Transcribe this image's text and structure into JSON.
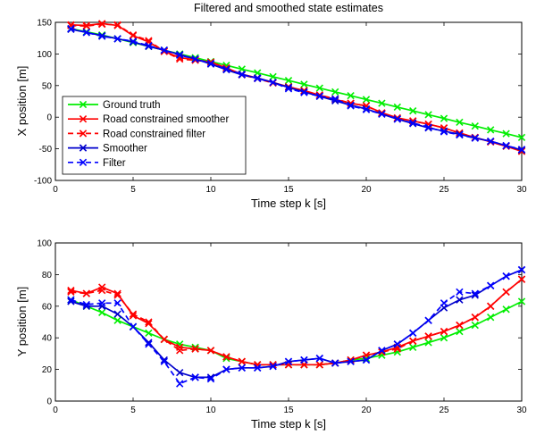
{
  "chart_data": [
    {
      "type": "line",
      "title": "Filtered and smoothed state estimates",
      "xlabel": "Time step k [s]",
      "ylabel": "X position [m]",
      "xlim": [
        0,
        30
      ],
      "ylim": [
        -100,
        150
      ],
      "xticks": [
        0,
        5,
        10,
        15,
        20,
        25,
        30
      ],
      "yticks": [
        -100,
        -50,
        0,
        50,
        100,
        150
      ],
      "grid": false,
      "legend": "lower-left",
      "x": [
        1,
        2,
        3,
        4,
        5,
        6,
        7,
        8,
        9,
        10,
        11,
        12,
        13,
        14,
        15,
        16,
        17,
        18,
        19,
        20,
        21,
        22,
        23,
        24,
        25,
        26,
        27,
        28,
        29,
        30
      ],
      "series": [
        {
          "name": "Ground truth",
          "color": "#00ee00",
          "style": "solid",
          "values": [
            140,
            135,
            130,
            124,
            118,
            112,
            106,
            100,
            94,
            88,
            82,
            76,
            70,
            64,
            58,
            52,
            46,
            40,
            34,
            28,
            22,
            16,
            10,
            4,
            -2,
            -8,
            -14,
            -20,
            -26,
            -32
          ]
        },
        {
          "name": "Road constrained smoother",
          "color": "#ff0000",
          "style": "solid",
          "values": [
            146,
            145,
            148,
            145,
            129,
            119,
            104,
            94,
            91,
            87,
            78,
            68,
            62,
            55,
            48,
            42,
            35,
            28,
            22,
            18,
            7,
            -1,
            -6,
            -11,
            -17,
            -25,
            -32,
            -39,
            -46,
            -54
          ]
        },
        {
          "name": "Road constrained filter",
          "color": "#ff0000",
          "style": "dashed",
          "values": [
            145,
            144,
            147,
            146,
            130,
            121,
            104,
            92,
            90,
            87,
            77,
            67,
            61,
            54,
            48,
            42,
            35,
            29,
            22,
            18,
            6,
            -2,
            -6,
            -11,
            -17,
            -25,
            -32,
            -39,
            -46,
            -53
          ]
        },
        {
          "name": "Smoother",
          "color": "#0000cc",
          "style": "solid",
          "values": [
            139,
            134,
            129,
            124,
            119,
            112,
            106,
            99,
            92,
            84,
            75,
            67,
            62,
            55,
            47,
            40,
            33,
            26,
            19,
            13,
            5,
            -3,
            -10,
            -17,
            -22,
            -27,
            -33,
            -38,
            -45,
            -52
          ]
        },
        {
          "name": "Filter",
          "color": "#0000ff",
          "style": "dashed",
          "values": [
            140,
            134,
            128,
            124,
            120,
            113,
            106,
            98,
            92,
            85,
            76,
            68,
            61,
            55,
            45,
            39,
            33,
            29,
            18,
            12,
            5,
            -3,
            -9,
            -16,
            -23,
            -28,
            -33,
            -38,
            -45,
            -51
          ]
        }
      ]
    },
    {
      "type": "line",
      "title": "",
      "xlabel": "Time step k [s]",
      "ylabel": "Y position [m]",
      "xlim": [
        0,
        30
      ],
      "ylim": [
        0,
        100
      ],
      "xticks": [
        0,
        5,
        10,
        15,
        20,
        25,
        30
      ],
      "yticks": [
        0,
        20,
        40,
        60,
        80,
        100
      ],
      "grid": false,
      "x": [
        1,
        2,
        3,
        4,
        5,
        6,
        7,
        8,
        9,
        10,
        11,
        12,
        13,
        14,
        15,
        16,
        17,
        18,
        19,
        20,
        21,
        22,
        23,
        24,
        25,
        26,
        27,
        28,
        29,
        30
      ],
      "series": [
        {
          "name": "Ground truth",
          "color": "#00ee00",
          "style": "solid",
          "values": [
            64,
            60,
            56,
            51,
            47,
            43,
            39,
            36,
            34,
            32,
            27,
            25,
            23,
            23,
            23,
            23,
            23,
            24,
            26,
            27,
            29,
            31,
            34,
            37,
            40,
            44,
            48,
            53,
            58,
            63
          ]
        },
        {
          "name": "Road constrained smoother",
          "color": "#ff0000",
          "style": "solid",
          "values": [
            70,
            68,
            72,
            68,
            54,
            49,
            39,
            34,
            33,
            32,
            28,
            25,
            23,
            23,
            23,
            23,
            23,
            24,
            26,
            29,
            31,
            34,
            38,
            41,
            44,
            48,
            53,
            60,
            69,
            77
          ]
        },
        {
          "name": "Road constrained filter",
          "color": "#ff0000",
          "style": "dashed",
          "values": [
            69,
            68,
            70,
            67,
            55,
            50,
            39,
            32,
            33,
            32,
            28,
            25,
            23,
            23,
            23,
            23,
            23,
            24,
            26,
            29,
            31,
            33,
            38,
            41,
            44,
            48,
            53,
            60,
            69,
            77
          ]
        },
        {
          "name": "Smoother",
          "color": "#0000cc",
          "style": "solid",
          "values": [
            63,
            60,
            60,
            55,
            47,
            37,
            26,
            18,
            15,
            15,
            20,
            21,
            21,
            22,
            25,
            26,
            27,
            24,
            25,
            26,
            32,
            36,
            43,
            51,
            59,
            64,
            67,
            73,
            79,
            83
          ]
        },
        {
          "name": "Filter",
          "color": "#0000ff",
          "style": "dashed",
          "values": [
            64,
            61,
            62,
            62,
            47,
            36,
            25,
            11,
            15,
            14,
            20,
            21,
            21,
            22,
            25,
            26,
            27,
            24,
            25,
            26,
            32,
            36,
            43,
            51,
            62,
            69,
            68,
            73,
            79,
            83
          ]
        }
      ]
    }
  ],
  "legend_entries": [
    {
      "label": "Ground truth",
      "color": "#00ee00",
      "style": "solid"
    },
    {
      "label": "Road constrained smoother",
      "color": "#ff0000",
      "style": "solid"
    },
    {
      "label": "Road constrained filter",
      "color": "#ff0000",
      "style": "dashed"
    },
    {
      "label": "Smoother",
      "color": "#0000cc",
      "style": "solid"
    },
    {
      "label": "Filter",
      "color": "#0000ff",
      "style": "dashed"
    }
  ]
}
